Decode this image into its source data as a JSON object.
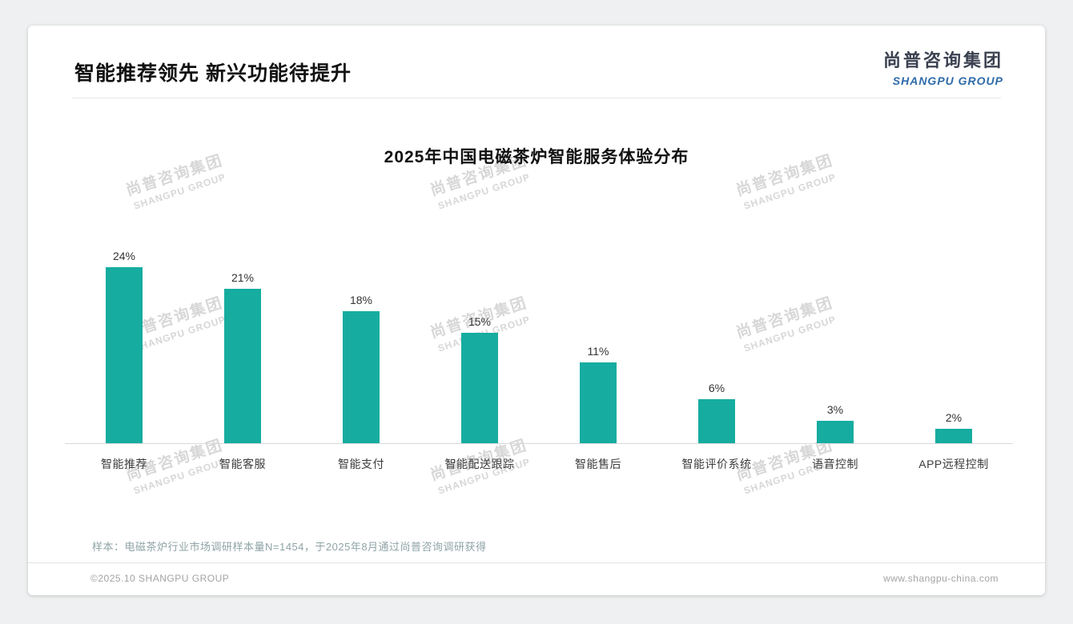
{
  "page": {
    "header": {
      "title": "智能推荐领先 新兴功能待提升"
    },
    "logo": {
      "cn": "尚普咨询集团",
      "en": "SHANGPU GROUP"
    },
    "watermark": {
      "cn": "尚普咨询集团",
      "en": "SHANGPU GROUP"
    },
    "note": "样本：电磁茶炉行业市场调研样本量N=1454，于2025年8月通过尚普咨询调研获得",
    "footer": {
      "left": "©2025.10 SHANGPU GROUP",
      "right": "www.shangpu-china.com"
    }
  },
  "chart_data": {
    "type": "bar",
    "title": "2025年中国电磁茶炉智能服务体验分布",
    "categories": [
      "智能推荐",
      "智能客服",
      "智能支付",
      "智能配送跟踪",
      "智能售后",
      "智能评价系统",
      "语音控制",
      "APP远程控制"
    ],
    "values": [
      24,
      21,
      18,
      15,
      11,
      6,
      3,
      2
    ],
    "unit": "%",
    "bar_color": "#16aca0",
    "ylim": [
      0,
      25
    ],
    "grid": false,
    "legend": false,
    "data_labels": true
  }
}
